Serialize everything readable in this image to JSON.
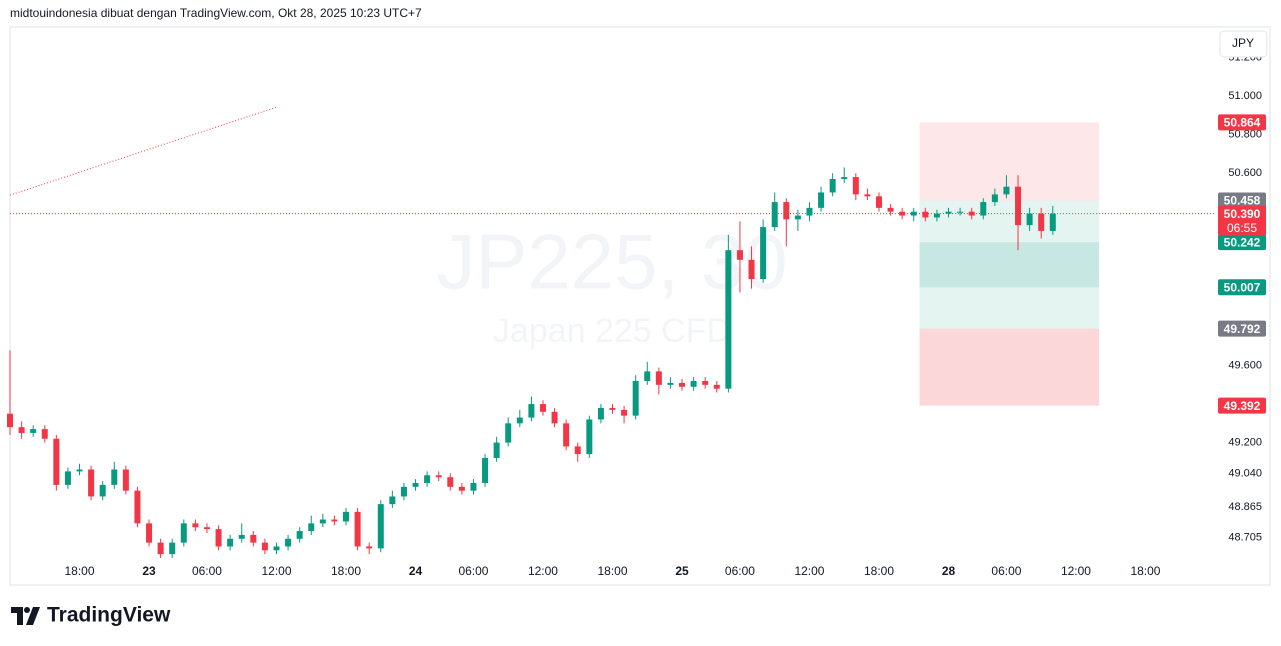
{
  "header": {
    "text": "midtouindonesia dibuat dengan TradingView.com, Okt 28, 2025 10:23 UTC+7",
    "currency": "JPY"
  },
  "footer": {
    "logo": "TradingView"
  },
  "chart_data": {
    "type": "candlestick",
    "watermark": "JP225, 30",
    "watermark_subtitle": "Japan 225 CFD",
    "up_color": "#089981",
    "down_color": "#f23645",
    "xlim": [
      0,
      208
    ],
    "ylim": [
      48.6,
      51.36
    ],
    "xticks": [
      {
        "value": 12,
        "label": "18:00"
      },
      {
        "value": 24,
        "label": "23"
      },
      {
        "value": 34,
        "label": "06:00"
      },
      {
        "value": 46,
        "label": "12:00"
      },
      {
        "value": 58,
        "label": "18:00"
      },
      {
        "value": 70,
        "label": "24"
      },
      {
        "value": 80,
        "label": "06:00"
      },
      {
        "value": 92,
        "label": "12:00"
      },
      {
        "value": 104,
        "label": "18:00"
      },
      {
        "value": 116,
        "label": "25"
      },
      {
        "value": 126,
        "label": "06:00"
      },
      {
        "value": 138,
        "label": "12:00"
      },
      {
        "value": 150,
        "label": "18:00"
      },
      {
        "value": 162,
        "label": "28"
      },
      {
        "value": 172,
        "label": "06:00"
      },
      {
        "value": 184,
        "label": "12:00"
      },
      {
        "value": 196,
        "label": "18:00"
      }
    ],
    "yticks": [
      {
        "value": 51.2,
        "label": "51.200"
      },
      {
        "value": 51.0,
        "label": "51.000"
      },
      {
        "value": 50.8,
        "label": "50.800"
      },
      {
        "value": 50.6,
        "label": "50.600"
      },
      {
        "value": 49.6,
        "label": "49.600"
      },
      {
        "value": 49.2,
        "label": "49.200"
      },
      {
        "value": 49.04,
        "label": "49.040"
      },
      {
        "value": 48.865,
        "label": "48.865"
      },
      {
        "value": 48.705,
        "label": "48.705"
      }
    ],
    "x": [
      0,
      2,
      4,
      6,
      8,
      10,
      12,
      14,
      16,
      18,
      20,
      22,
      24,
      26,
      28,
      30,
      32,
      34,
      36,
      38,
      40,
      42,
      44,
      46,
      48,
      50,
      52,
      54,
      56,
      58,
      60,
      62,
      64,
      66,
      68,
      70,
      72,
      74,
      76,
      78,
      80,
      82,
      84,
      86,
      88,
      90,
      92,
      94,
      96,
      98,
      100,
      102,
      104,
      106,
      108,
      110,
      112,
      114,
      116,
      118,
      120,
      122,
      124,
      126,
      128,
      130,
      132,
      134,
      136,
      138,
      140,
      142,
      144,
      146,
      148,
      150,
      152,
      154,
      156,
      158,
      160,
      162,
      164,
      166,
      168,
      170,
      172,
      174,
      176,
      178,
      180
    ],
    "open": [
      49.35,
      49.28,
      49.25,
      49.27,
      49.22,
      48.98,
      49.05,
      49.06,
      48.92,
      48.98,
      49.06,
      48.95,
      48.78,
      48.68,
      48.62,
      48.68,
      48.78,
      48.76,
      48.75,
      48.66,
      48.7,
      48.72,
      48.68,
      48.64,
      48.66,
      48.7,
      48.74,
      48.78,
      48.8,
      48.79,
      48.84,
      48.66,
      48.65,
      48.88,
      48.92,
      48.97,
      48.99,
      49.03,
      49.02,
      48.97,
      48.95,
      48.99,
      49.12,
      49.2,
      49.3,
      49.33,
      49.4,
      49.36,
      49.3,
      49.18,
      49.14,
      49.32,
      49.38,
      49.37,
      49.34,
      49.52,
      49.57,
      49.5,
      49.51,
      49.49,
      49.52,
      49.5,
      49.48,
      50.2,
      50.15,
      50.05,
      50.32,
      50.45,
      50.36,
      50.38,
      50.42,
      50.5,
      50.57,
      50.58,
      50.49,
      50.48,
      50.42,
      50.4,
      50.38,
      50.4,
      50.37,
      50.39,
      50.4,
      50.4,
      50.38,
      50.45,
      50.49,
      50.53,
      50.33,
      50.39,
      50.3
    ],
    "high": [
      49.68,
      49.31,
      49.29,
      49.29,
      49.24,
      49.07,
      49.09,
      49.08,
      49.0,
      49.1,
      49.08,
      48.97,
      48.8,
      48.7,
      48.7,
      48.8,
      48.8,
      48.78,
      48.77,
      48.72,
      48.78,
      48.74,
      48.7,
      48.68,
      48.72,
      48.76,
      48.82,
      48.83,
      48.82,
      48.86,
      48.86,
      48.68,
      48.9,
      48.95,
      48.99,
      49.01,
      49.05,
      49.05,
      49.04,
      48.99,
      49.01,
      49.14,
      49.23,
      49.33,
      49.37,
      49.44,
      49.42,
      49.38,
      49.32,
      49.2,
      49.34,
      49.4,
      49.4,
      49.39,
      49.55,
      49.62,
      49.59,
      49.54,
      49.53,
      49.54,
      49.54,
      49.52,
      50.28,
      50.35,
      50.22,
      50.36,
      50.5,
      50.47,
      50.41,
      50.45,
      50.53,
      50.6,
      50.63,
      50.6,
      50.52,
      50.5,
      50.44,
      50.42,
      50.42,
      50.42,
      50.41,
      50.42,
      50.42,
      50.42,
      50.47,
      50.52,
      50.59,
      50.59,
      50.42,
      50.42,
      50.43
    ],
    "low": [
      49.24,
      49.22,
      49.23,
      49.2,
      48.95,
      48.96,
      49.03,
      48.9,
      48.9,
      48.96,
      48.93,
      48.76,
      48.66,
      48.6,
      48.6,
      48.66,
      48.74,
      48.73,
      48.64,
      48.64,
      48.68,
      48.66,
      48.62,
      48.62,
      48.64,
      48.68,
      48.72,
      48.76,
      48.77,
      48.77,
      48.64,
      48.62,
      48.63,
      48.86,
      48.9,
      48.95,
      48.97,
      49.0,
      48.95,
      48.93,
      48.93,
      48.97,
      49.1,
      49.18,
      49.28,
      49.31,
      49.34,
      49.28,
      49.16,
      49.1,
      49.12,
      49.3,
      49.35,
      49.3,
      49.32,
      49.5,
      49.45,
      49.48,
      49.47,
      49.47,
      49.48,
      49.46,
      49.46,
      49.98,
      50.0,
      50.03,
      50.3,
      50.22,
      50.3,
      50.35,
      50.4,
      50.48,
      50.55,
      50.46,
      50.46,
      50.4,
      50.38,
      50.36,
      50.35,
      50.35,
      50.35,
      50.37,
      50.38,
      50.36,
      50.36,
      50.43,
      50.47,
      50.2,
      50.3,
      50.26,
      50.28
    ],
    "close": [
      49.28,
      49.25,
      49.27,
      49.22,
      48.98,
      49.05,
      49.06,
      48.92,
      48.98,
      49.06,
      48.95,
      48.78,
      48.68,
      48.62,
      48.68,
      48.78,
      48.76,
      48.75,
      48.66,
      48.7,
      48.72,
      48.68,
      48.64,
      48.66,
      48.7,
      48.74,
      48.78,
      48.8,
      48.79,
      48.84,
      48.66,
      48.65,
      48.88,
      48.92,
      48.97,
      48.99,
      49.03,
      49.02,
      48.97,
      48.95,
      48.99,
      49.12,
      49.2,
      49.3,
      49.33,
      49.4,
      49.36,
      49.3,
      49.18,
      49.14,
      49.32,
      49.38,
      49.37,
      49.34,
      49.52,
      49.57,
      49.5,
      49.51,
      49.49,
      49.52,
      49.5,
      49.48,
      50.2,
      50.15,
      50.05,
      50.32,
      50.45,
      50.36,
      50.38,
      50.42,
      50.5,
      50.57,
      50.58,
      50.49,
      50.48,
      50.42,
      50.4,
      50.38,
      50.4,
      50.37,
      50.39,
      50.4,
      50.4,
      50.38,
      50.45,
      50.49,
      50.53,
      50.33,
      50.39,
      50.3,
      50.39
    ],
    "current_price": {
      "value": 50.39,
      "label": "50.390",
      "countdown": "06:55",
      "color": "#f23645"
    },
    "trend_lines": [
      {
        "x": [
          0,
          46
        ],
        "y": [
          50.486,
          50.943
        ],
        "color": "#f23645"
      }
    ],
    "position_tool": {
      "x": [
        157,
        188
      ],
      "zones": [
        {
          "from": 50.864,
          "to": 50.458,
          "color": "rgba(242,54,69,0.12)"
        },
        {
          "from": 50.458,
          "to": 49.792,
          "color": "rgba(8,153,129,0.11)"
        },
        {
          "from": 50.242,
          "to": 50.007,
          "color": "rgba(8,153,129,0.13)"
        },
        {
          "from": 49.792,
          "to": 49.392,
          "color": "rgba(242,54,69,0.2)"
        }
      ]
    },
    "price_labels": [
      {
        "value": 50.864,
        "label": "50.864",
        "color": "#f23645"
      },
      {
        "value": 50.458,
        "label": "50.458",
        "color": "#787b86"
      },
      {
        "value": 50.242,
        "label": "50.242",
        "color": "#089981"
      },
      {
        "value": 50.007,
        "label": "50.007",
        "color": "#089981"
      },
      {
        "value": 49.792,
        "label": "49.792",
        "color": "#787b86"
      },
      {
        "value": 49.392,
        "label": "49.392",
        "color": "#f23645"
      }
    ]
  }
}
